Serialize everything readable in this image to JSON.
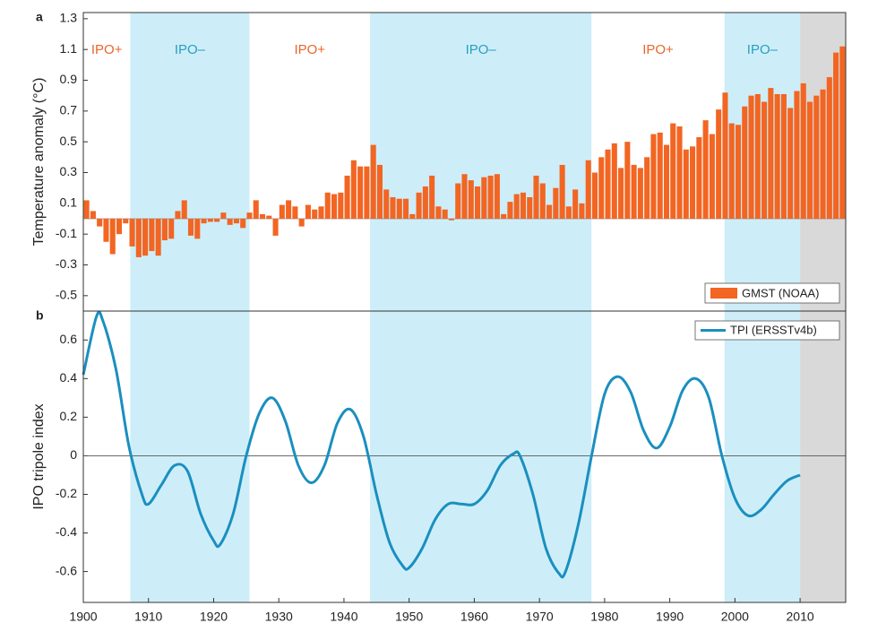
{
  "chart_data": [
    {
      "type": "bar",
      "panel_label": "a",
      "ylabel": "Temperature anomaly (°C)",
      "legend": "GMST (NOAA)",
      "legend_position": "lower right",
      "color": "#f26522",
      "xlim": [
        1900,
        2017
      ],
      "ylim": [
        -0.6,
        1.34
      ],
      "yticks": [
        -0.5,
        -0.3,
        -0.1,
        0.1,
        0.3,
        0.5,
        0.7,
        0.9,
        1.1,
        1.3
      ],
      "regions": [
        {
          "start": 1900,
          "end": 1907.2,
          "label": "IPO+",
          "label_color": "#e8662a",
          "color": "#ffffff"
        },
        {
          "start": 1907.2,
          "end": 1925.5,
          "label": "IPO–",
          "label_color": "#2a9ec0",
          "color": "#cdeef9"
        },
        {
          "start": 1925.5,
          "end": 1944,
          "label": "IPO+",
          "label_color": "#e8662a",
          "color": "#ffffff"
        },
        {
          "start": 1944,
          "end": 1978,
          "label": "IPO–",
          "label_color": "#2a9ec0",
          "color": "#cdeef9"
        },
        {
          "start": 1978,
          "end": 1998.4,
          "label": "IPO+",
          "label_color": "#e8662a",
          "color": "#ffffff"
        },
        {
          "start": 1998.4,
          "end": 2010,
          "label": "IPO–",
          "label_color": "#2a9ec0",
          "color": "#cdeef9"
        },
        {
          "start": 2010,
          "end": 2017,
          "color": "#d9d9d9"
        }
      ],
      "x": [
        1900,
        1901,
        1902,
        1903,
        1904,
        1905,
        1906,
        1907,
        1908,
        1909,
        1910,
        1911,
        1912,
        1913,
        1914,
        1915,
        1916,
        1917,
        1918,
        1919,
        1920,
        1921,
        1922,
        1923,
        1924,
        1925,
        1926,
        1927,
        1928,
        1929,
        1930,
        1931,
        1932,
        1933,
        1934,
        1935,
        1936,
        1937,
        1938,
        1939,
        1940,
        1941,
        1942,
        1943,
        1944,
        1945,
        1946,
        1947,
        1948,
        1949,
        1950,
        1951,
        1952,
        1953,
        1954,
        1955,
        1956,
        1957,
        1958,
        1959,
        1960,
        1961,
        1962,
        1963,
        1964,
        1965,
        1966,
        1967,
        1968,
        1969,
        1970,
        1971,
        1972,
        1973,
        1974,
        1975,
        1976,
        1977,
        1978,
        1979,
        1980,
        1981,
        1982,
        1983,
        1984,
        1985,
        1986,
        1987,
        1988,
        1989,
        1990,
        1991,
        1992,
        1993,
        1994,
        1995,
        1996,
        1997,
        1998,
        1999,
        2000,
        2001,
        2002,
        2003,
        2004,
        2005,
        2006,
        2007,
        2008,
        2009,
        2010,
        2011,
        2012,
        2013,
        2014,
        2015,
        2016
      ],
      "values": [
        0.12,
        0.05,
        -0.05,
        -0.15,
        -0.23,
        -0.1,
        -0.03,
        -0.18,
        -0.25,
        -0.24,
        -0.21,
        -0.24,
        -0.14,
        -0.13,
        0.05,
        0.12,
        -0.11,
        -0.13,
        -0.03,
        -0.02,
        -0.02,
        0.04,
        -0.04,
        -0.03,
        -0.06,
        0.04,
        0.12,
        0.03,
        0.02,
        -0.11,
        0.09,
        0.12,
        0.08,
        -0.05,
        0.09,
        0.06,
        0.08,
        0.17,
        0.16,
        0.17,
        0.28,
        0.38,
        0.34,
        0.34,
        0.48,
        0.35,
        0.19,
        0.14,
        0.13,
        0.13,
        0.03,
        0.17,
        0.21,
        0.28,
        0.08,
        0.06,
        -0.01,
        0.23,
        0.29,
        0.25,
        0.21,
        0.27,
        0.28,
        0.29,
        0.03,
        0.11,
        0.16,
        0.17,
        0.14,
        0.28,
        0.23,
        0.09,
        0.2,
        0.35,
        0.08,
        0.19,
        0.1,
        0.38,
        0.3,
        0.4,
        0.45,
        0.49,
        0.33,
        0.5,
        0.35,
        0.33,
        0.4,
        0.55,
        0.56,
        0.48,
        0.62,
        0.6,
        0.45,
        0.47,
        0.53,
        0.64,
        0.55,
        0.71,
        0.82,
        0.62,
        0.61,
        0.73,
        0.8,
        0.81,
        0.76,
        0.85,
        0.81,
        0.81,
        0.72,
        0.83,
        0.88,
        0.76,
        0.8,
        0.84,
        0.92,
        1.08,
        1.12
      ]
    },
    {
      "type": "line",
      "panel_label": "b",
      "ylabel": "IPO tripole index",
      "legend_position": "upper right",
      "xlim": [
        1900,
        2017
      ],
      "ylim": [
        -0.76,
        0.75
      ],
      "xticks": [
        1900,
        1910,
        1920,
        1930,
        1940,
        1950,
        1960,
        1970,
        1980,
        1990,
        2000,
        2010
      ],
      "yticks": [
        -0.6,
        -0.4,
        -0.2,
        0,
        0.2,
        0.4,
        0.6
      ],
      "series": [
        {
          "name": "TPI (ERSSTv4b)",
          "color": "#1a8fbf",
          "x": [
            1900,
            1902,
            1903,
            1905,
            1907,
            1909,
            1910,
            1912,
            1914,
            1916,
            1918,
            1920,
            1921,
            1923,
            1925,
            1927,
            1929,
            1931,
            1933,
            1935,
            1937,
            1939,
            1941,
            1943,
            1945,
            1947,
            1949,
            1950,
            1952,
            1954,
            1956,
            1958,
            1960,
            1962,
            1964,
            1966,
            1967,
            1969,
            1971,
            1973,
            1974,
            1976,
            1978,
            1980,
            1982,
            1984,
            1986,
            1988,
            1990,
            1992,
            1994,
            1996,
            1998,
            2000,
            2002,
            2004,
            2006,
            2008,
            2010
          ],
          "values": [
            0.42,
            0.72,
            0.7,
            0.45,
            0.05,
            -0.2,
            -0.25,
            -0.15,
            -0.05,
            -0.08,
            -0.3,
            -0.44,
            -0.46,
            -0.3,
            0.0,
            0.22,
            0.3,
            0.18,
            -0.05,
            -0.14,
            -0.05,
            0.17,
            0.24,
            0.1,
            -0.2,
            -0.45,
            -0.57,
            -0.58,
            -0.48,
            -0.33,
            -0.25,
            -0.25,
            -0.25,
            -0.18,
            -0.05,
            0.01,
            0.0,
            -0.2,
            -0.48,
            -0.61,
            -0.6,
            -0.35,
            0.0,
            0.32,
            0.41,
            0.33,
            0.13,
            0.04,
            0.15,
            0.34,
            0.4,
            0.3,
            0.0,
            -0.22,
            -0.31,
            -0.28,
            -0.2,
            -0.13,
            -0.1
          ]
        }
      ]
    }
  ]
}
